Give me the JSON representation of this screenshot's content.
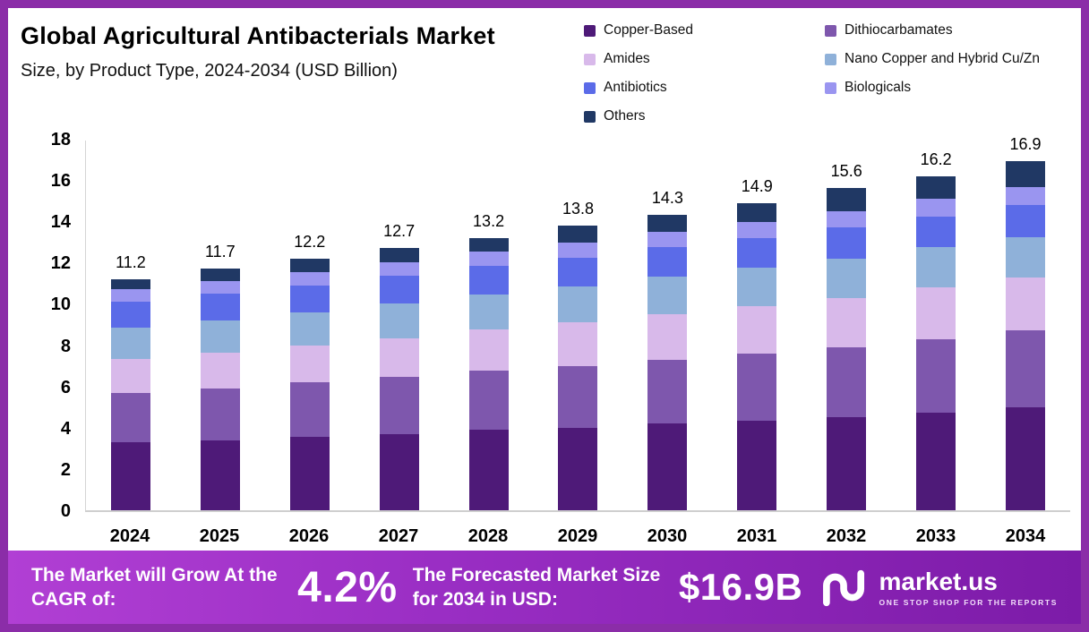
{
  "header": {
    "title": "Global Agricultural Antibacterials Market",
    "subtitle": "Size, by Product Type, 2024-2034 (USD Billion)"
  },
  "chart_data": {
    "type": "bar",
    "stacked": true,
    "title": "Global Agricultural Antibacterials Market Size, by Product Type, 2024-2034 (USD Billion)",
    "categories": [
      "2024",
      "2025",
      "2026",
      "2027",
      "2028",
      "2029",
      "2030",
      "2031",
      "2032",
      "2033",
      "2034"
    ],
    "totals": [
      "11.2",
      "11.7",
      "12.2",
      "12.7",
      "13.2",
      "13.8",
      "14.3",
      "14.9",
      "15.6",
      "16.2",
      "16.9"
    ],
    "series": [
      {
        "name": "Copper-Based",
        "color": "#4e1a78",
        "values": [
          3.3,
          3.4,
          3.55,
          3.7,
          3.9,
          4.0,
          4.2,
          4.35,
          4.5,
          4.75,
          5.0
        ]
      },
      {
        "name": "Dithiocarbamates",
        "color": "#7e57ad",
        "values": [
          2.4,
          2.5,
          2.65,
          2.75,
          2.85,
          3.0,
          3.1,
          3.25,
          3.4,
          3.55,
          3.7
        ]
      },
      {
        "name": "Amides",
        "color": "#d8b9ea",
        "values": [
          1.65,
          1.75,
          1.8,
          1.9,
          2.0,
          2.1,
          2.2,
          2.3,
          2.4,
          2.5,
          2.6
        ]
      },
      {
        "name": "Nano Copper and Hybrid Cu/Zn",
        "color": "#8fb1d9",
        "values": [
          1.5,
          1.55,
          1.6,
          1.65,
          1.7,
          1.75,
          1.8,
          1.85,
          1.9,
          1.95,
          1.95
        ]
      },
      {
        "name": "Antibiotics",
        "color": "#5b6be8",
        "values": [
          1.25,
          1.3,
          1.3,
          1.35,
          1.4,
          1.4,
          1.45,
          1.45,
          1.5,
          1.5,
          1.55
        ]
      },
      {
        "name": "Biologicals",
        "color": "#9a95f0",
        "values": [
          0.6,
          0.62,
          0.65,
          0.68,
          0.7,
          0.73,
          0.75,
          0.78,
          0.8,
          0.83,
          0.85
        ]
      },
      {
        "name": "Others",
        "color": "#203864",
        "values": [
          0.5,
          0.58,
          0.65,
          0.67,
          0.65,
          0.82,
          0.8,
          0.92,
          1.1,
          1.12,
          1.25
        ]
      }
    ],
    "xlabel": "",
    "ylabel": "",
    "ylim": [
      0,
      18
    ],
    "yticks": [
      0,
      2,
      4,
      6,
      8,
      10,
      12,
      14,
      16,
      18
    ],
    "grid": false,
    "legend_position": "top-right"
  },
  "banner": {
    "cagr_label": "The Market will Grow At the CAGR of:",
    "cagr_value": "4.2%",
    "forecast_label": "The Forecasted Market Size for 2034 in USD:",
    "forecast_value": "$16.9B",
    "logo_text": "market.us",
    "logo_tagline": "ONE STOP SHOP FOR THE REPORTS"
  },
  "colors": {
    "frame_border": "#8b2da8",
    "banner_gradient_start": "#b13fd4",
    "banner_gradient_end": "#7c1ba8"
  }
}
